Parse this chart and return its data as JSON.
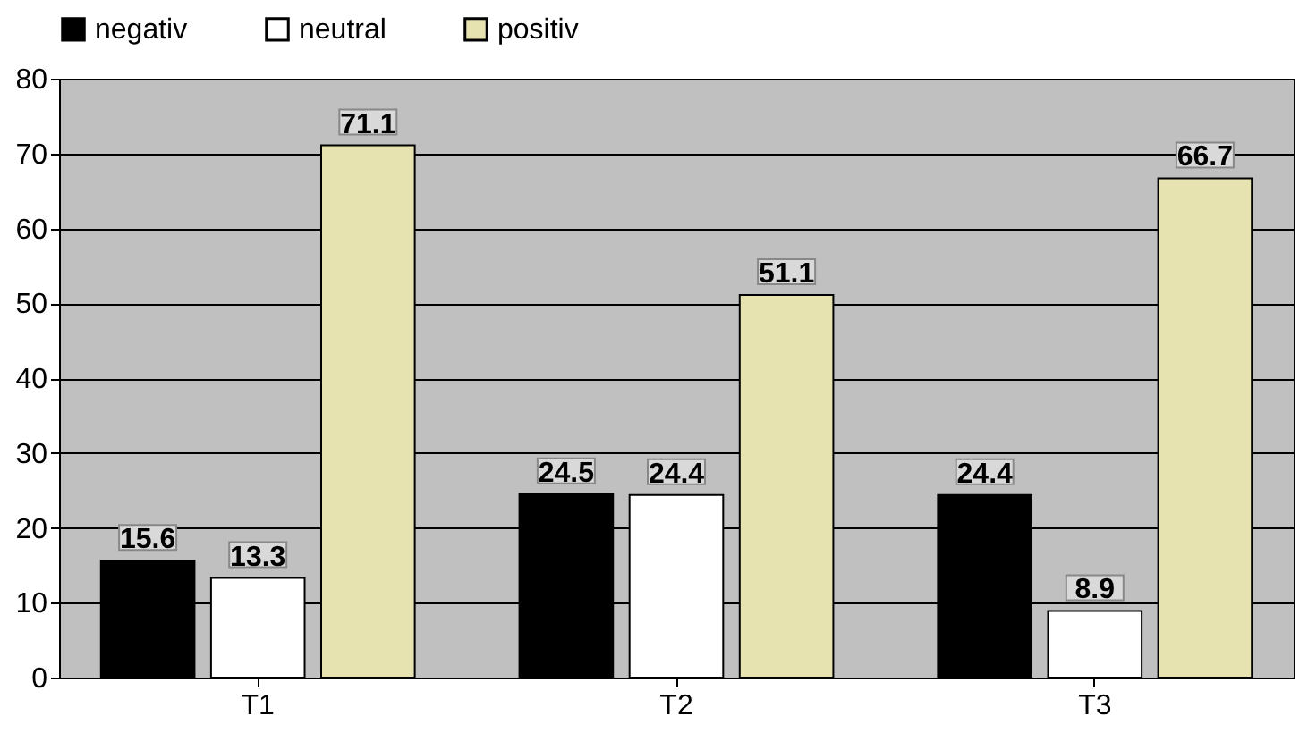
{
  "chart_data": {
    "type": "bar",
    "categories": [
      "T1",
      "T2",
      "T3"
    ],
    "series": [
      {
        "name": "negativ",
        "color": "#000000",
        "values": [
          15.6,
          24.5,
          24.4
        ]
      },
      {
        "name": "neutral",
        "color": "#ffffff",
        "values": [
          13.3,
          24.4,
          8.9
        ]
      },
      {
        "name": "positiv",
        "color": "#e6e3b0",
        "values": [
          71.1,
          51.1,
          66.7
        ]
      }
    ],
    "ylim": [
      0,
      80
    ],
    "yticks": [
      0,
      10,
      20,
      30,
      40,
      50,
      60,
      70,
      80
    ],
    "grid": "y",
    "legend": "top",
    "data_labels": true
  }
}
